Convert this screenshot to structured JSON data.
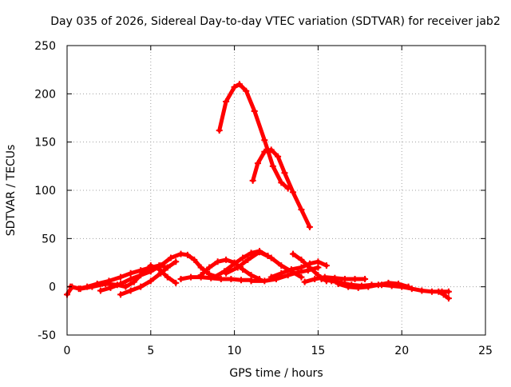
{
  "chart_data": {
    "type": "line",
    "title": "Day 035 of 2026, Sidereal Day-to-day VTEC variation (SDTVAR) for receiver jab2",
    "xlabel": "GPS time / hours",
    "ylabel": "SDTVAR / TECUs",
    "xlim": [
      0,
      25
    ],
    "ylim": [
      -50,
      250
    ],
    "xticks": [
      0,
      5,
      10,
      15,
      20,
      25
    ],
    "yticks": [
      -50,
      0,
      50,
      100,
      150,
      200,
      250
    ],
    "grid": true,
    "series_color": "#ff0000",
    "series": [
      {
        "name": "s1",
        "x": [
          9.1,
          9.5,
          10.0,
          10.3,
          10.7,
          11.2,
          11.8,
          12.3,
          12.8,
          13.2
        ],
        "y": [
          162,
          192,
          207,
          210,
          203,
          182,
          152,
          125,
          108,
          102
        ]
      },
      {
        "name": "s2",
        "x": [
          11.1,
          11.4,
          11.8,
          12.2,
          12.6,
          13.0,
          13.5,
          14.0,
          14.5
        ],
        "y": [
          110,
          128,
          140,
          142,
          135,
          118,
          98,
          80,
          62
        ]
      },
      {
        "name": "s3",
        "x": [
          0.0,
          0.3,
          0.7,
          1.2,
          1.8,
          2.5,
          3.2,
          3.8,
          4.4,
          5.0,
          5.5,
          6.0
        ],
        "y": [
          -8,
          0,
          -2,
          0,
          3,
          6,
          10,
          14,
          17,
          20,
          22,
          20
        ]
      },
      {
        "name": "s4",
        "x": [
          0.2,
          0.8,
          1.5,
          2.3,
          3.0,
          3.5,
          4.0,
          4.5,
          5.0,
          5.5,
          6.0,
          6.5
        ],
        "y": [
          0,
          -2,
          0,
          3,
          2,
          0,
          5,
          14,
          22,
          18,
          10,
          4
        ]
      },
      {
        "name": "s5",
        "x": [
          2.0,
          2.6,
          3.2,
          3.8,
          4.4,
          5.0,
          5.6,
          6.2,
          6.8,
          7.2,
          7.6,
          8.0,
          8.5,
          9.0
        ],
        "y": [
          -4,
          -1,
          3,
          8,
          12,
          16,
          22,
          30,
          34,
          33,
          28,
          20,
          13,
          10
        ]
      },
      {
        "name": "s6",
        "x": [
          3.2,
          3.8,
          4.4,
          5.0,
          5.6,
          6.0,
          6.5
        ],
        "y": [
          -8,
          -4,
          0,
          6,
          14,
          20,
          26
        ]
      },
      {
        "name": "s7",
        "x": [
          6.8,
          7.4,
          8.0,
          8.6,
          9.2,
          9.8,
          10.4,
          11.0
        ],
        "y": [
          8,
          10,
          10,
          9,
          8,
          8,
          7,
          7
        ]
      },
      {
        "name": "s8",
        "x": [
          8.0,
          8.5,
          9.0,
          9.5,
          10.0,
          10.5,
          11.0,
          11.5
        ],
        "y": [
          12,
          20,
          26,
          28,
          25,
          18,
          12,
          8
        ]
      },
      {
        "name": "s9",
        "x": [
          8.8,
          9.4,
          10.0,
          10.5,
          11.0,
          11.5,
          12.0
        ],
        "y": [
          10,
          16,
          24,
          30,
          35,
          37,
          32
        ]
      },
      {
        "name": "s10",
        "x": [
          9.5,
          10.2,
          10.8,
          11.5,
          12.2,
          12.8,
          13.4,
          14.0
        ],
        "y": [
          14,
          20,
          28,
          36,
          30,
          22,
          16,
          10
        ]
      },
      {
        "name": "s11",
        "x": [
          11.0,
          11.8,
          12.5,
          13.2,
          13.8,
          14.4,
          15.0
        ],
        "y": [
          6,
          6,
          8,
          12,
          15,
          17,
          20
        ]
      },
      {
        "name": "s12",
        "x": [
          12.2,
          12.8,
          13.4,
          14.0,
          14.5,
          15.0,
          15.5
        ],
        "y": [
          10,
          14,
          18,
          20,
          24,
          26,
          22
        ]
      },
      {
        "name": "s13",
        "x": [
          13.5,
          14.0,
          14.5,
          15.0,
          15.5
        ],
        "y": [
          34,
          28,
          20,
          12,
          6
        ]
      },
      {
        "name": "s14",
        "x": [
          14.2,
          14.8,
          15.4,
          16.0,
          16.6,
          17.2,
          17.8
        ],
        "y": [
          5,
          8,
          10,
          9,
          8,
          8,
          8
        ]
      },
      {
        "name": "s15",
        "x": [
          15.2,
          15.8,
          16.4,
          17.0,
          17.6,
          18.2,
          18.8,
          19.4,
          20.0,
          20.6,
          21.2,
          21.8,
          22.4,
          22.8
        ],
        "y": [
          8,
          6,
          4,
          2,
          1,
          2,
          2,
          1,
          0,
          -2,
          -4,
          -5,
          -5,
          -5
        ]
      },
      {
        "name": "s16",
        "x": [
          16.2,
          16.8,
          17.4,
          18.0,
          18.6,
          19.2,
          19.8,
          20.4
        ],
        "y": [
          3,
          0,
          -1,
          0,
          2,
          4,
          3,
          0
        ]
      },
      {
        "name": "s17",
        "x": [
          22.2,
          22.5,
          22.8
        ],
        "y": [
          -5,
          -8,
          -12
        ]
      }
    ]
  }
}
